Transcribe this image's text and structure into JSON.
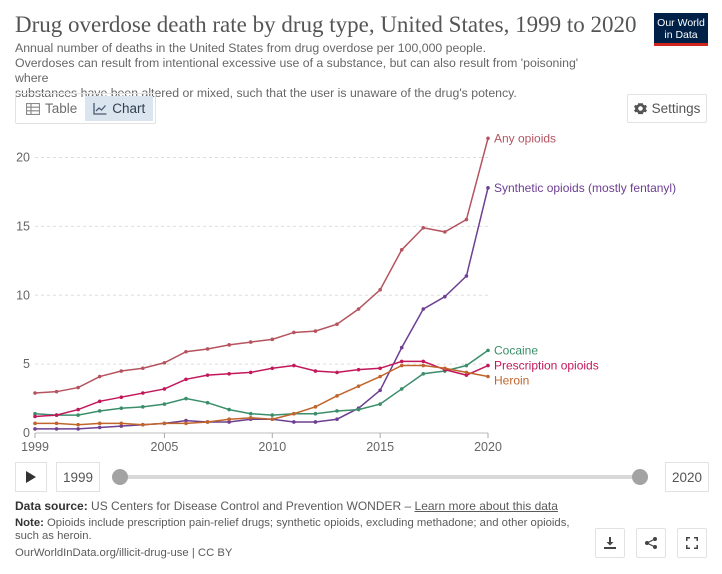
{
  "title": "Drug overdose death rate by drug type, United States, 1999 to 2020",
  "subtitle": [
    "Annual number of deaths in the United States from drug overdose per 100,000 people.",
    "Overdoses can result from intentional excessive use of a substance, but can also result from 'poisoning' where",
    "substances have been altered or mixed, such that the user is unaware of the drug's potency."
  ],
  "logo": {
    "line1": "Our World",
    "line2": "in Data"
  },
  "tabs": {
    "table": "Table",
    "chart": "Chart"
  },
  "settings_label": "Settings",
  "timeline": {
    "start_year": "1999",
    "end_year": "2020",
    "start_fraction": 0,
    "end_fraction": 1
  },
  "footer": {
    "source_label": "Data source:",
    "source_text": "US Centers for Disease Control and Prevention WONDER – ",
    "learn_more": "Learn more about this data",
    "note_label": "Note:",
    "note_text": "Opioids include prescription pain-relief drugs; synthetic opioids, excluding methadone; and other opioids, such as heroin.",
    "url": "OurWorldInData.org/illicit-drug-use | CC BY"
  },
  "icons": [
    "table-icon",
    "chart-icon",
    "gear-icon",
    "play-icon",
    "download-icon",
    "share-icon",
    "fullscreen-icon"
  ],
  "chart_data": {
    "type": "line",
    "title": "Drug overdose death rate by drug type, United States, 1999 to 2020",
    "xlabel": "",
    "ylabel": "",
    "x": [
      1999,
      2000,
      2001,
      2002,
      2003,
      2004,
      2005,
      2006,
      2007,
      2008,
      2009,
      2010,
      2011,
      2012,
      2013,
      2014,
      2015,
      2016,
      2017,
      2018,
      2019,
      2020
    ],
    "xlim": [
      1999,
      2020
    ],
    "ylim": [
      0,
      22
    ],
    "xticks": [
      1999,
      2005,
      2010,
      2015,
      2020
    ],
    "yticks": [
      0,
      5,
      10,
      15,
      20
    ],
    "grid": "horizontal dashed",
    "legend": "inline labels at right end of lines",
    "series": [
      {
        "name": "Any opioids",
        "color": "#b5535e",
        "values": [
          2.9,
          3.0,
          3.3,
          4.1,
          4.5,
          4.7,
          5.1,
          5.9,
          6.1,
          6.4,
          6.6,
          6.8,
          7.3,
          7.4,
          7.9,
          9.0,
          10.4,
          13.3,
          14.9,
          14.6,
          15.5,
          21.4
        ]
      },
      {
        "name": "Synthetic opioids (mostly fentanyl)",
        "color": "#6d3e91",
        "values": [
          0.3,
          0.3,
          0.3,
          0.4,
          0.5,
          0.6,
          0.7,
          0.9,
          0.8,
          0.8,
          1.0,
          1.0,
          0.8,
          0.8,
          1.0,
          1.8,
          3.1,
          6.2,
          9.0,
          9.9,
          11.4,
          17.8
        ]
      },
      {
        "name": "Cocaine",
        "color": "#3b8e6a",
        "values": [
          1.4,
          1.3,
          1.3,
          1.6,
          1.8,
          1.9,
          2.1,
          2.5,
          2.2,
          1.7,
          1.4,
          1.3,
          1.4,
          1.4,
          1.6,
          1.7,
          2.1,
          3.2,
          4.3,
          4.5,
          4.9,
          6.0
        ]
      },
      {
        "name": "Prescription opioids",
        "color": "#c2185b",
        "values": [
          1.2,
          1.3,
          1.7,
          2.3,
          2.6,
          2.9,
          3.2,
          3.9,
          4.2,
          4.3,
          4.4,
          4.7,
          4.9,
          4.5,
          4.4,
          4.6,
          4.7,
          5.2,
          5.2,
          4.6,
          4.2,
          4.9
        ]
      },
      {
        "name": "Heroin",
        "color": "#c0652b",
        "values": [
          0.7,
          0.7,
          0.6,
          0.7,
          0.7,
          0.6,
          0.7,
          0.7,
          0.8,
          1.0,
          1.1,
          1.0,
          1.4,
          1.9,
          2.7,
          3.4,
          4.1,
          4.9,
          4.9,
          4.7,
          4.4,
          4.1
        ]
      }
    ]
  }
}
